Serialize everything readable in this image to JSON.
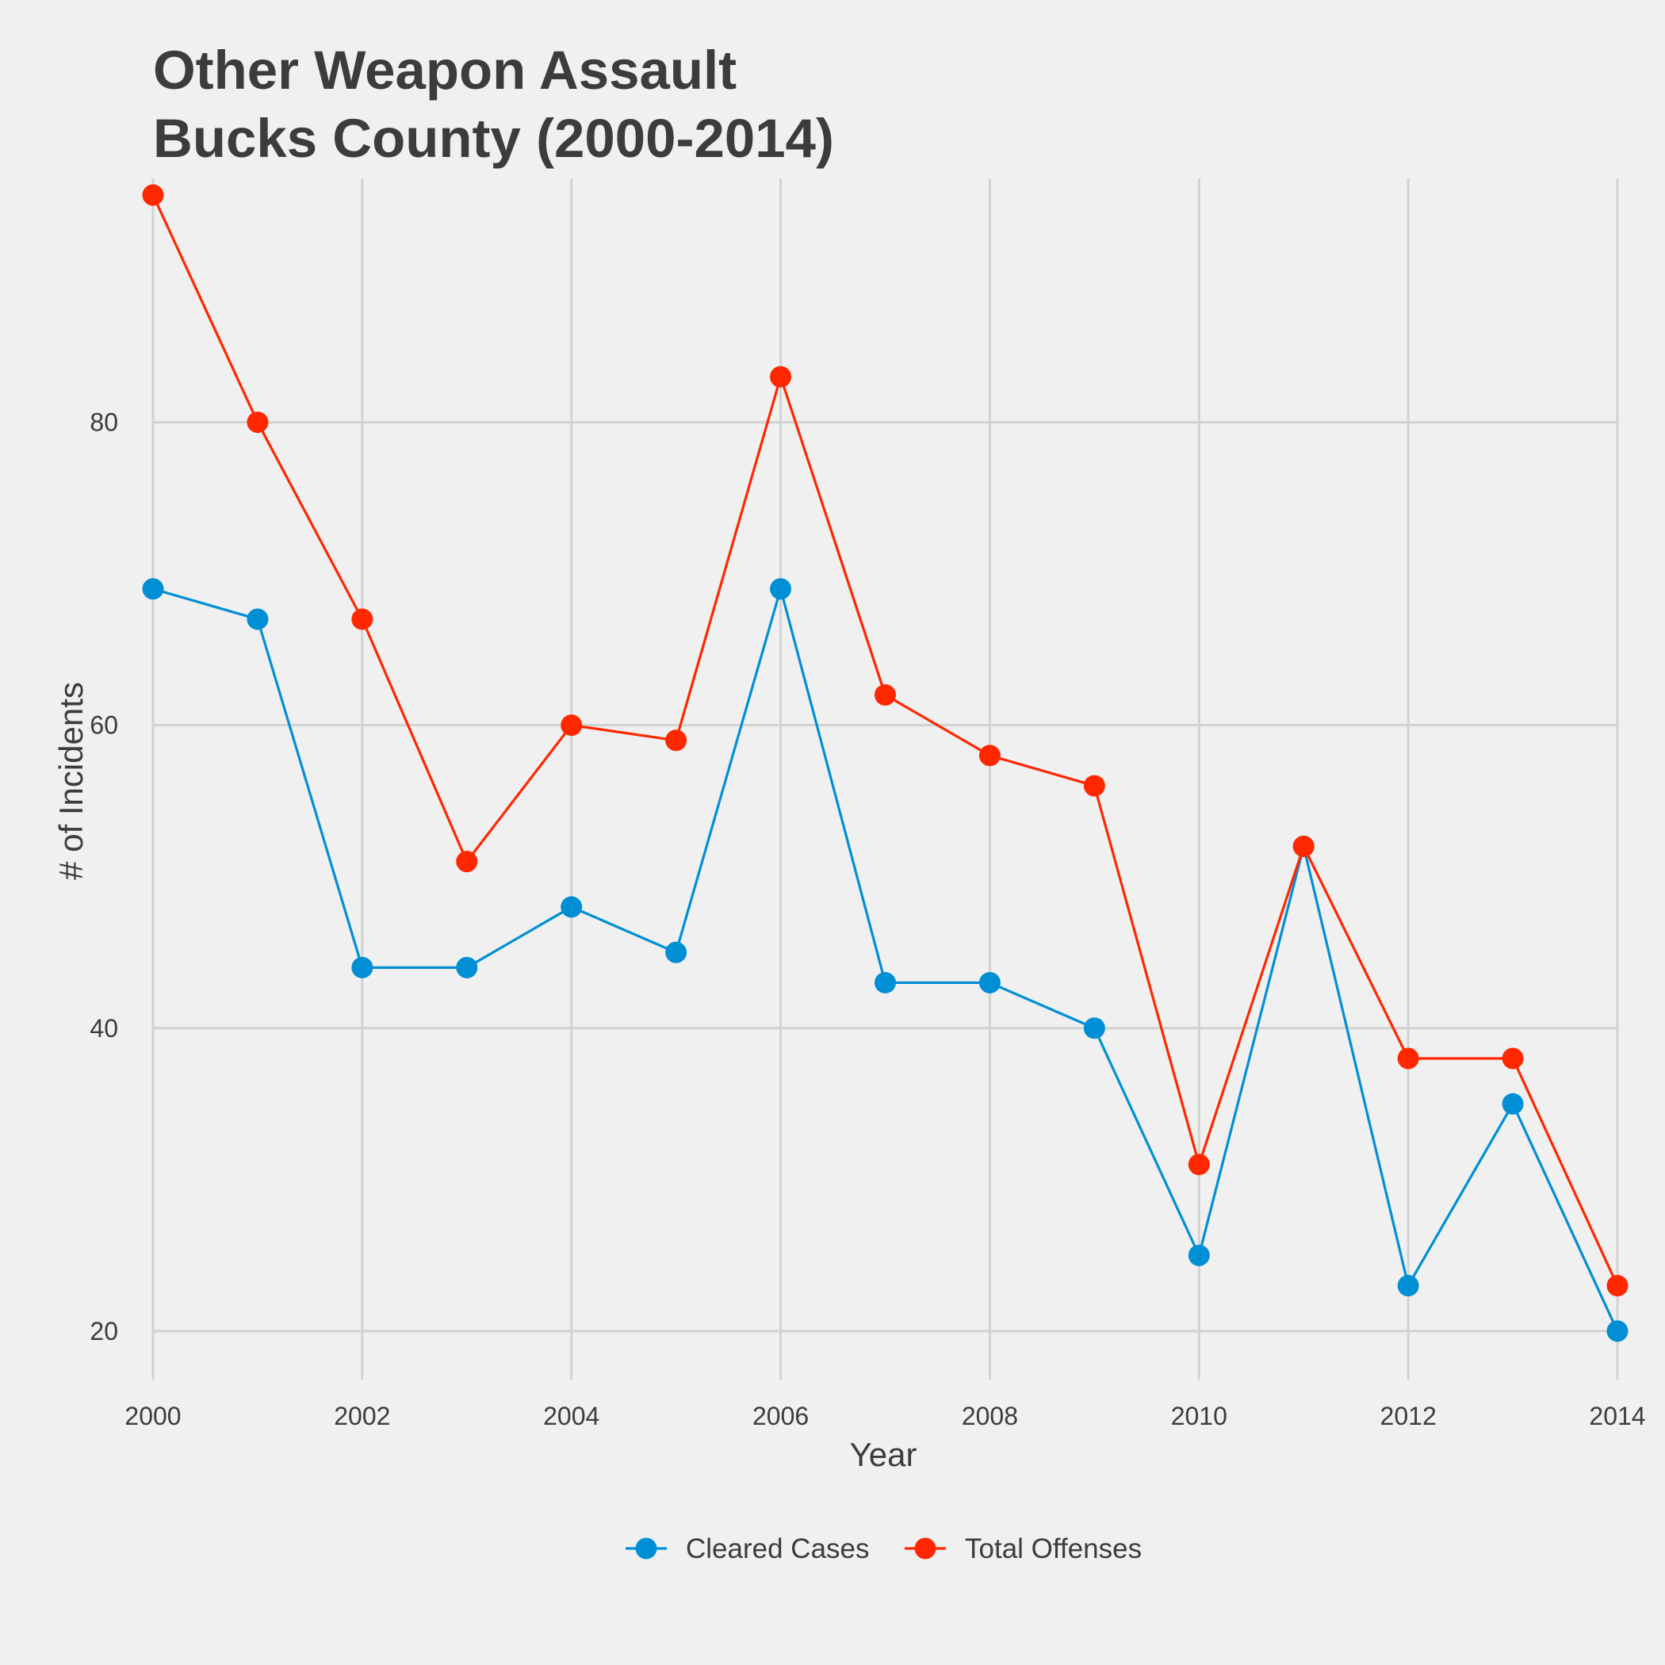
{
  "chart_data": {
    "type": "line",
    "title_lines": [
      "Other Weapon Assault",
      "Bucks County (2000-2014)"
    ],
    "xlabel": "Year",
    "ylabel": "# of Incidents",
    "x": [
      2000,
      2001,
      2002,
      2003,
      2004,
      2005,
      2006,
      2007,
      2008,
      2009,
      2010,
      2011,
      2012,
      2013,
      2014
    ],
    "x_ticks": [
      2000,
      2002,
      2004,
      2006,
      2008,
      2010,
      2012,
      2014
    ],
    "x_tick_labels": [
      "2000",
      "2002",
      "2004",
      "2006",
      "2008",
      "2010",
      "2012",
      "2014"
    ],
    "xlim": [
      2000,
      2014
    ],
    "y_ticks": [
      20,
      40,
      60,
      80
    ],
    "y_tick_labels": [
      "20",
      "40",
      "60",
      "80"
    ],
    "ylim": [
      16.8,
      96.1
    ],
    "grid": true,
    "legend_position": "bottom",
    "series": [
      {
        "name": "Cleared Cases",
        "color": "#008fd5",
        "values": [
          69,
          67,
          44,
          44,
          48,
          45,
          69,
          43,
          43,
          40,
          25,
          52,
          23,
          35,
          20
        ]
      },
      {
        "name": "Total Offenses",
        "color": "#ff2700",
        "values": [
          95,
          80,
          67,
          51,
          60,
          59,
          83,
          62,
          58,
          56,
          31,
          52,
          38,
          38,
          23
        ]
      }
    ]
  }
}
